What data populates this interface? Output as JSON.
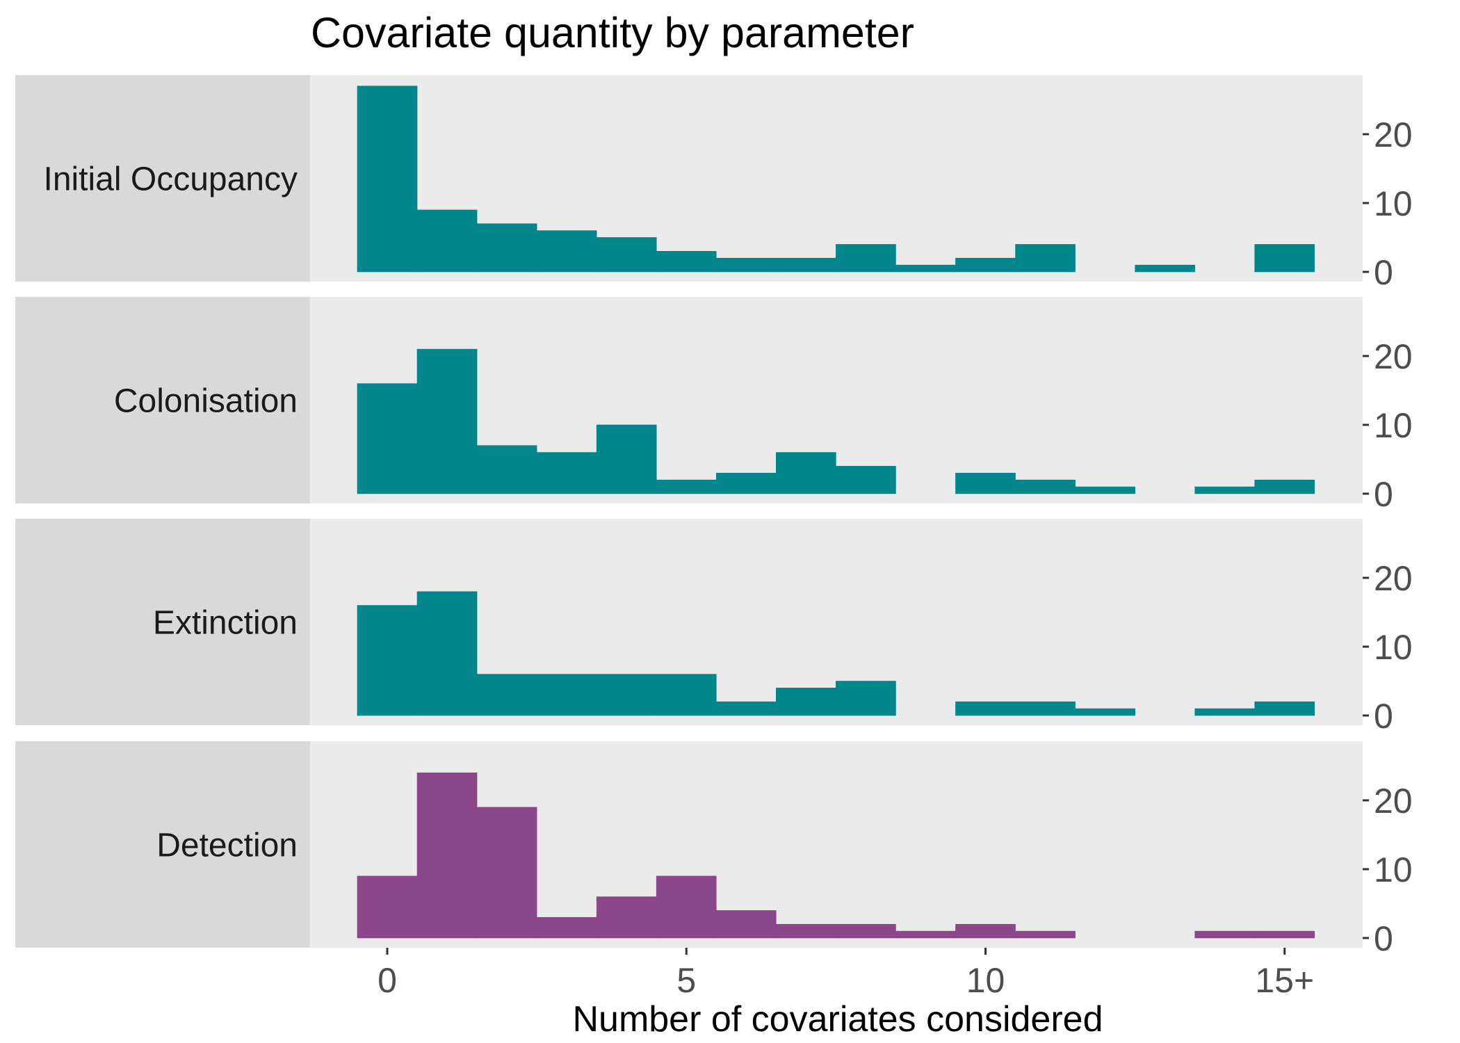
{
  "chart_data": {
    "type": "bar",
    "title": "Covariate quantity by parameter",
    "xlabel": "Number of covariates considered",
    "ylabel": "",
    "x_ticks": [
      {
        "value": 0,
        "label": "0"
      },
      {
        "value": 5,
        "label": "5"
      },
      {
        "value": 10,
        "label": "10"
      },
      {
        "value": 15,
        "label": "15+"
      }
    ],
    "y_ticks": [
      {
        "value": 0,
        "label": "0"
      },
      {
        "value": 10,
        "label": "10"
      },
      {
        "value": 20,
        "label": "20"
      }
    ],
    "categories": [
      0,
      1,
      2,
      3,
      4,
      5,
      6,
      7,
      8,
      9,
      10,
      11,
      12,
      13,
      14,
      15
    ],
    "xlim": [
      -1.5,
      16.25
    ],
    "ylim": [
      0,
      28
    ],
    "y_axis_position": "right",
    "facet_strip_position": "left",
    "colors": {
      "teal": "#00868B",
      "purple": "#8B4789",
      "panel_background": "#EBEBEB",
      "strip_background": "#D9D9D9"
    },
    "series": [
      {
        "name": "Initial Occupancy",
        "color": "#00868B",
        "values": [
          27,
          9,
          7,
          6,
          5,
          3,
          2,
          2,
          4,
          1,
          2,
          4,
          0,
          1,
          0,
          4
        ]
      },
      {
        "name": "Colonisation",
        "color": "#00868B",
        "values": [
          16,
          21,
          7,
          6,
          10,
          2,
          3,
          6,
          4,
          0,
          3,
          2,
          1,
          0,
          1,
          2
        ]
      },
      {
        "name": "Extinction",
        "color": "#00868B",
        "values": [
          16,
          18,
          6,
          6,
          6,
          6,
          2,
          4,
          5,
          0,
          2,
          2,
          1,
          0,
          1,
          2
        ]
      },
      {
        "name": "Detection",
        "color": "#8B4789",
        "values": [
          9,
          24,
          19,
          3,
          6,
          9,
          4,
          2,
          2,
          1,
          2,
          1,
          0,
          0,
          1,
          1
        ]
      }
    ]
  }
}
